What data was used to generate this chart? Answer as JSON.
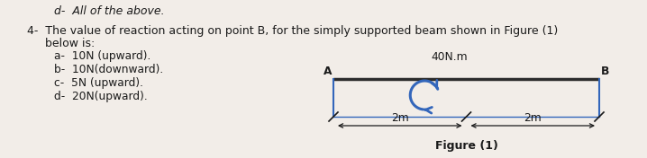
{
  "background_color": "#f2ede8",
  "text_color": "#1a1a1a",
  "top_text_italic": "d-  All of the above.",
  "question_line1": "4-  The value of reaction acting on point B, for the simply supported beam shown in Figure (1)",
  "question_line2": "     below is:",
  "options": [
    "a-  10N (upward).",
    "b-  10N(downward).",
    "c-  5N (upward).",
    "d-  20N(upward)."
  ],
  "figure_label": "Figure (1)",
  "moment_label": "40N.m",
  "dim_label_left": "2m",
  "dim_label_right": "2m",
  "point_A": "A",
  "point_B": "B",
  "beam_color": "#2c2c2c",
  "support_color": "#3366bb",
  "moment_color": "#3366bb",
  "dim_color": "#3366bb",
  "font_size_main": 9.0,
  "font_size_options": 8.8,
  "font_size_fig": 9.0
}
